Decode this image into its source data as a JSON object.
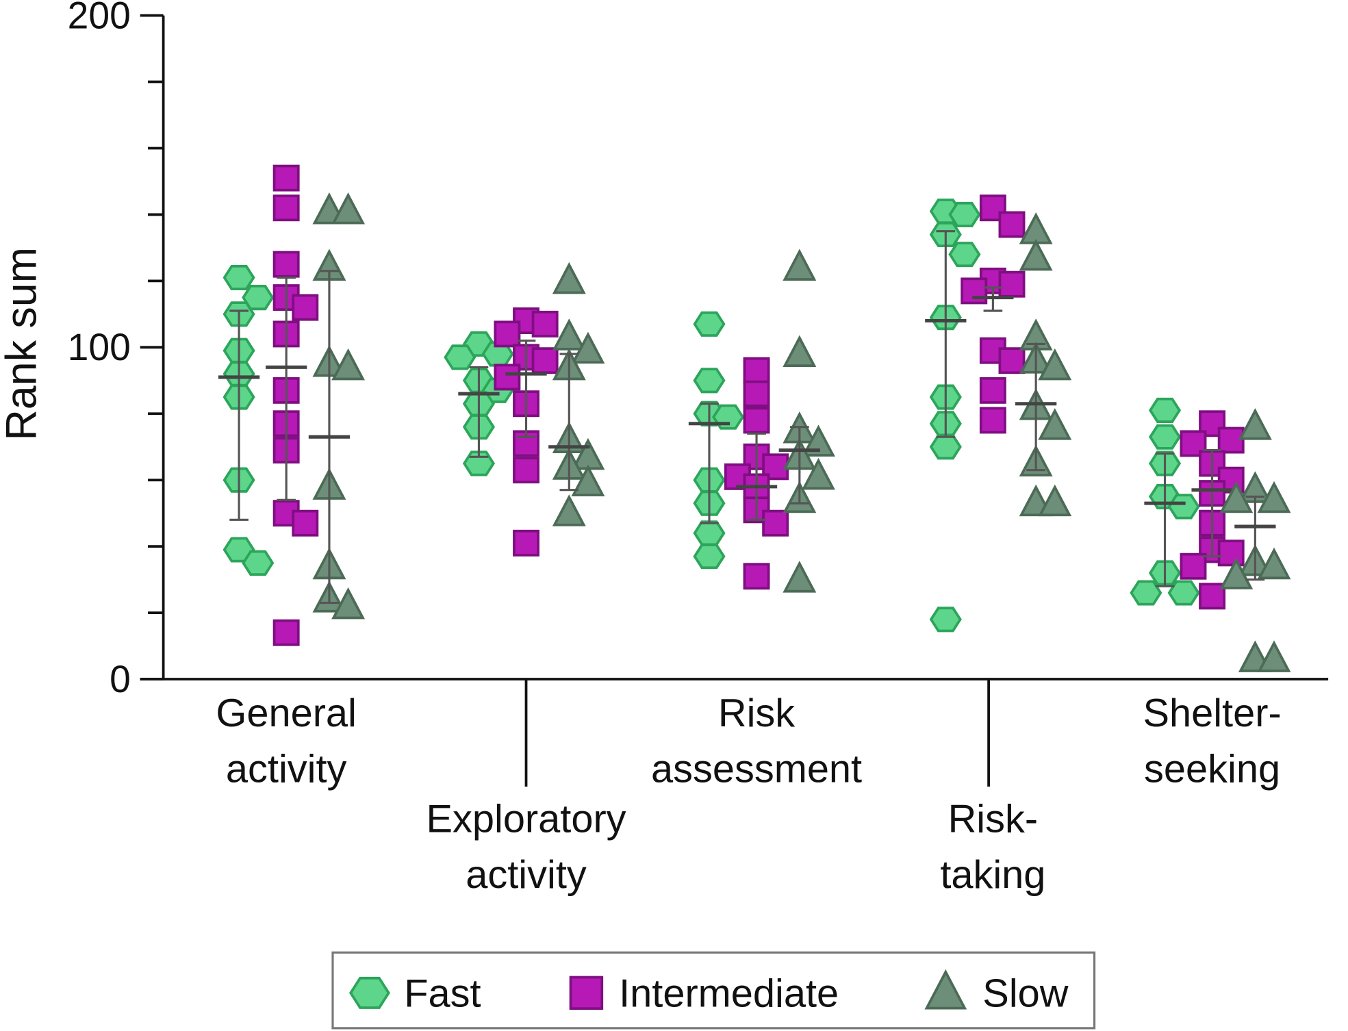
{
  "chart_data": {
    "type": "scatter",
    "y_label": "Rank sum",
    "ylim": [
      0,
      200
    ],
    "yticks": [
      0,
      100,
      200
    ],
    "yminor_ticks": [
      20,
      40,
      60,
      80,
      120,
      140,
      160,
      180
    ],
    "categories": [
      [
        "General",
        "activity"
      ],
      [
        "Exploratory",
        "activity"
      ],
      [
        "Risk",
        "assessment"
      ],
      [
        "Risk-",
        "taking"
      ],
      [
        "Shelter-",
        "seeking"
      ]
    ],
    "series": [
      {
        "name": "Fast",
        "marker": "hexagon",
        "color": "#5dd68c",
        "edge_color": "#2ca55b",
        "values": [
          [
            121,
            115,
            110,
            99,
            92,
            85,
            60,
            39,
            35
          ],
          [
            101,
            98,
            97,
            90,
            87,
            83,
            76,
            65
          ],
          [
            107,
            90,
            80,
            79,
            60,
            53,
            44,
            37
          ],
          [
            141,
            140,
            134,
            128,
            109,
            85,
            77,
            70,
            18
          ],
          [
            81,
            73,
            65,
            55,
            52,
            32,
            26,
            26
          ]
        ],
        "mean": [
          91,
          86,
          77,
          108,
          53
        ],
        "error_range": [
          [
            48,
            111
          ],
          [
            67,
            94
          ],
          [
            47,
            83
          ],
          [
            73,
            135
          ],
          [
            28,
            68
          ]
        ]
      },
      {
        "name": "Intermediate",
        "marker": "square",
        "color": "#b719b7",
        "edge_color": "#7f0f80",
        "values": [
          [
            151,
            142,
            125,
            115,
            112,
            104,
            87,
            77,
            69,
            50,
            47,
            14
          ],
          [
            108,
            107,
            104,
            97,
            96,
            91,
            83,
            71,
            63,
            41
          ],
          [
            93,
            86,
            78,
            67,
            64,
            61,
            58,
            51,
            47,
            31
          ],
          [
            142,
            137,
            120,
            119,
            117,
            99,
            96,
            87,
            78
          ],
          [
            77,
            72,
            71,
            65,
            60,
            56,
            47,
            39,
            38,
            34,
            25
          ]
        ],
        "mean": [
          94,
          92,
          58,
          115,
          57
        ],
        "error_range": [
          [
            54,
            121
          ],
          [
            73,
            102
          ],
          [
            48,
            74
          ],
          [
            111,
            118
          ],
          [
            37,
            69
          ]
        ]
      },
      {
        "name": "Slow",
        "marker": "triangle",
        "color": "#6d8f79",
        "edge_color": "#4c6b57",
        "values": [
          [
            141,
            141,
            124,
            95,
            94,
            58,
            34,
            24,
            22
          ],
          [
            120,
            103,
            99,
            94,
            72,
            67,
            64,
            59,
            50
          ],
          [
            124,
            98,
            75,
            71,
            67,
            61,
            54,
            30
          ],
          [
            135,
            127,
            103,
            96,
            94,
            82,
            76,
            65,
            53,
            53
          ],
          [
            76,
            57,
            54,
            54,
            35,
            34,
            31,
            6,
            6
          ]
        ],
        "mean": [
          73,
          70,
          69,
          83,
          46
        ],
        "error_range": [
          [
            23,
            123
          ],
          [
            57,
            98
          ],
          [
            53,
            76
          ],
          [
            63,
            101
          ],
          [
            30,
            55
          ]
        ]
      }
    ]
  }
}
